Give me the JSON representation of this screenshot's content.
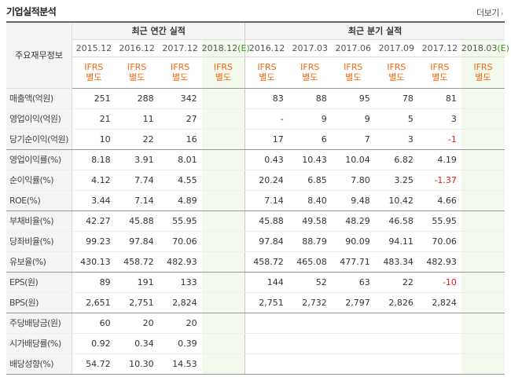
{
  "header": {
    "title": "기업실적분석",
    "more": "더보기",
    "more_arrow": "›"
  },
  "table": {
    "row_head": "주요재무정보",
    "annual_head": "최근 연간 실적",
    "quarter_head": "최근 분기 실적",
    "annual_periods": [
      "2015.12",
      "2016.12",
      "2017.12",
      "2018.12"
    ],
    "annual_estimate_mark": "(E)",
    "quarter_periods": [
      "2016.12",
      "2017.03",
      "2017.06",
      "2017.09",
      "2017.12",
      "2018.03"
    ],
    "quarter_estimate_mark": "(E)",
    "ifrs_line1": "IFRS",
    "ifrs_line2": "별도",
    "rows": [
      {
        "label": "매출액(억원)",
        "annual": [
          "251",
          "288",
          "342",
          ""
        ],
        "quarter": [
          "83",
          "88",
          "95",
          "78",
          "81",
          ""
        ]
      },
      {
        "label": "영업이익(억원)",
        "annual": [
          "21",
          "11",
          "27",
          ""
        ],
        "quarter": [
          "-",
          "9",
          "9",
          "5",
          "3",
          ""
        ]
      },
      {
        "label": "당기순이익(억원)",
        "annual": [
          "10",
          "22",
          "16",
          ""
        ],
        "quarter": [
          "17",
          "6",
          "7",
          "3",
          "-1",
          ""
        ]
      },
      {
        "label": "영업이익률(%)",
        "annual": [
          "8.18",
          "3.91",
          "8.01",
          ""
        ],
        "quarter": [
          "0.43",
          "10.43",
          "10.04",
          "6.82",
          "4.19",
          ""
        ]
      },
      {
        "label": "순이익률(%)",
        "annual": [
          "4.12",
          "7.74",
          "4.55",
          ""
        ],
        "quarter": [
          "20.24",
          "6.85",
          "7.80",
          "3.25",
          "-1.37",
          ""
        ]
      },
      {
        "label": "ROE(%)",
        "annual": [
          "3.44",
          "7.14",
          "4.89",
          ""
        ],
        "quarter": [
          "7.14",
          "8.40",
          "9.48",
          "10.42",
          "4.66",
          ""
        ]
      },
      {
        "label": "부채비율(%)",
        "annual": [
          "42.27",
          "45.88",
          "55.95",
          ""
        ],
        "quarter": [
          "45.88",
          "49.58",
          "48.29",
          "46.58",
          "55.95",
          ""
        ]
      },
      {
        "label": "당좌비율(%)",
        "annual": [
          "99.23",
          "97.84",
          "70.06",
          ""
        ],
        "quarter": [
          "97.84",
          "88.79",
          "90.09",
          "94.11",
          "70.06",
          ""
        ]
      },
      {
        "label": "유보율(%)",
        "annual": [
          "430.13",
          "458.72",
          "482.93",
          ""
        ],
        "quarter": [
          "458.72",
          "465.08",
          "477.71",
          "483.34",
          "482.93",
          ""
        ]
      },
      {
        "label": "EPS(원)",
        "annual": [
          "89",
          "191",
          "133",
          ""
        ],
        "quarter": [
          "144",
          "52",
          "63",
          "22",
          "-10",
          ""
        ]
      },
      {
        "label": "BPS(원)",
        "annual": [
          "2,651",
          "2,751",
          "2,824",
          ""
        ],
        "quarter": [
          "2,751",
          "2,732",
          "2,797",
          "2,826",
          "2,824",
          ""
        ]
      },
      {
        "label": "주당배당금(원)",
        "annual": [
          "60",
          "20",
          "20",
          ""
        ],
        "quarter": [
          "",
          "",
          "",
          "",
          "",
          ""
        ]
      },
      {
        "label": "시가배당률(%)",
        "annual": [
          "0.92",
          "0.34",
          "0.39",
          ""
        ],
        "quarter": [
          "",
          "",
          "",
          "",
          "",
          ""
        ]
      },
      {
        "label": "배당성향(%)",
        "annual": [
          "54.72",
          "10.30",
          "14.53",
          ""
        ],
        "quarter": [
          "",
          "",
          "",
          "",
          "",
          ""
        ]
      }
    ]
  },
  "colors": {
    "ifrs": "#f06a0f",
    "negative": "#e02020",
    "estimate_bg": "#f2f8ec",
    "estimate_mark": "#3a9a1a"
  }
}
